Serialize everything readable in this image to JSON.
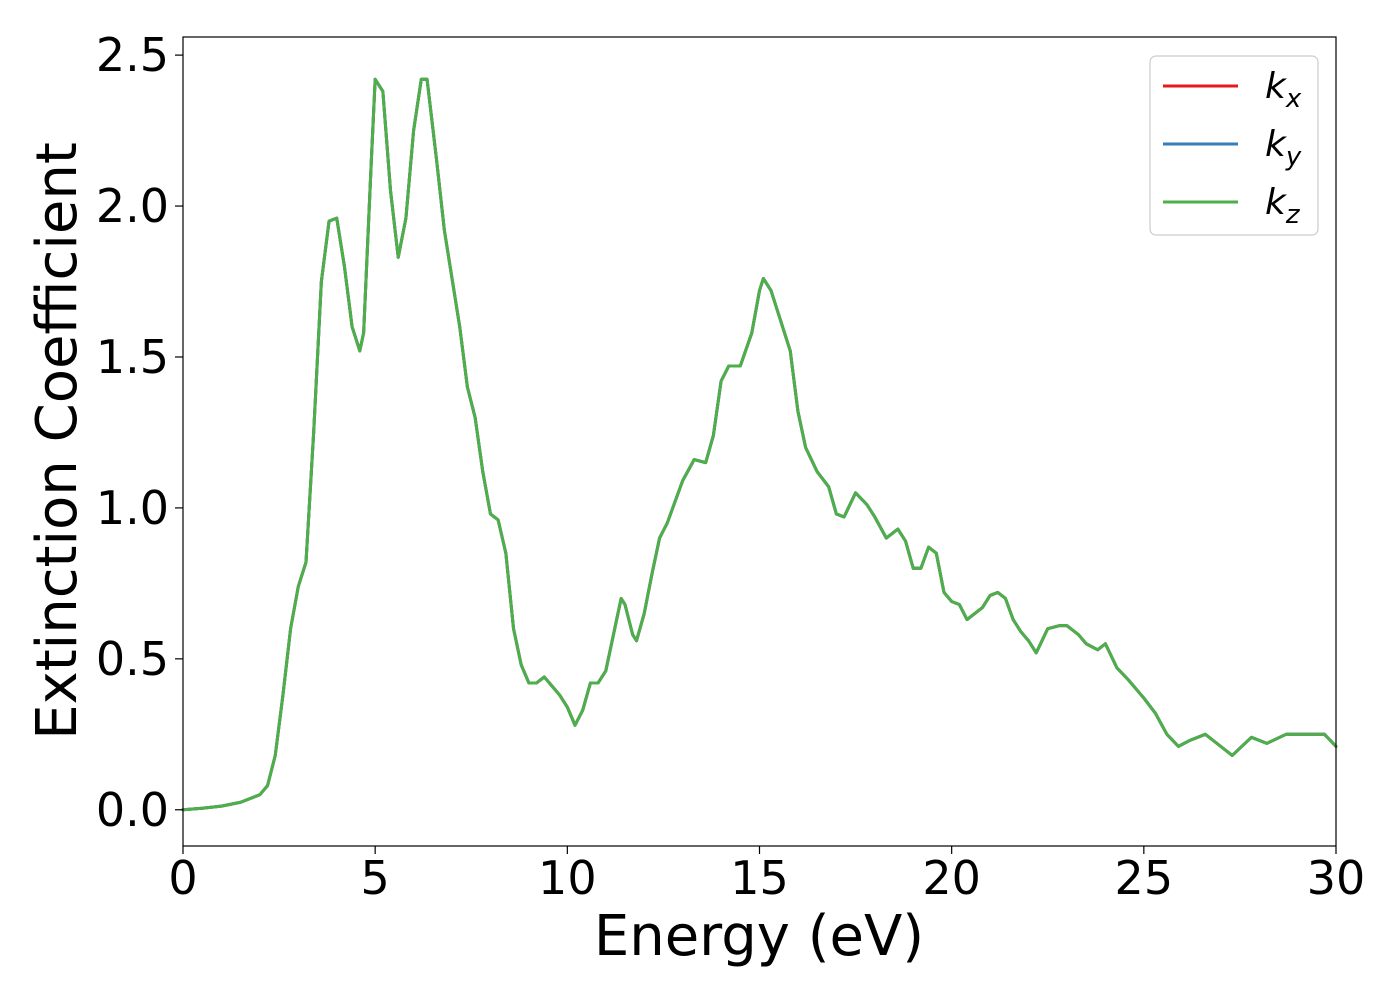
{
  "chart_data": {
    "type": "line",
    "title": "",
    "xlabel": "Energy (eV)",
    "ylabel": "Extinction Coefficient",
    "xlim": [
      0,
      30
    ],
    "ylim": [
      -0.12,
      2.56
    ],
    "xticks": [
      0,
      5,
      10,
      15,
      20,
      25,
      30
    ],
    "xtick_labels": [
      "0",
      "5",
      "10",
      "15",
      "20",
      "25",
      "30"
    ],
    "yticks": [
      0.0,
      0.5,
      1.0,
      1.5,
      2.0,
      2.5
    ],
    "ytick_labels": [
      "0.0",
      "0.5",
      "1.0",
      "1.5",
      "2.0",
      "2.5"
    ],
    "grid": false,
    "legend_position": "top-right",
    "x": [
      0,
      0.5,
      1.0,
      1.5,
      2.0,
      2.2,
      2.4,
      2.6,
      2.8,
      3.0,
      3.2,
      3.4,
      3.6,
      3.8,
      4.0,
      4.2,
      4.4,
      4.6,
      4.7,
      4.9,
      5.0,
      5.2,
      5.4,
      5.6,
      5.8,
      6.0,
      6.2,
      6.35,
      6.6,
      6.8,
      7.0,
      7.2,
      7.4,
      7.6,
      7.8,
      8.0,
      8.2,
      8.4,
      8.6,
      8.8,
      9.0,
      9.2,
      9.4,
      9.6,
      9.8,
      10.0,
      10.2,
      10.4,
      10.6,
      10.8,
      11.0,
      11.2,
      11.4,
      11.5,
      11.7,
      11.8,
      12.0,
      12.2,
      12.4,
      12.6,
      12.8,
      13.0,
      13.3,
      13.6,
      13.8,
      14.0,
      14.2,
      14.5,
      14.8,
      15.0,
      15.1,
      15.3,
      15.5,
      15.8,
      16.0,
      16.2,
      16.5,
      16.8,
      17.0,
      17.2,
      17.5,
      17.8,
      18.0,
      18.3,
      18.6,
      18.8,
      19.0,
      19.2,
      19.4,
      19.6,
      19.8,
      20.0,
      20.2,
      20.4,
      20.6,
      20.8,
      21.0,
      21.2,
      21.4,
      21.6,
      21.8,
      22.0,
      22.2,
      22.5,
      22.8,
      23.0,
      23.3,
      23.5,
      23.8,
      24.0,
      24.3,
      24.6,
      25.0,
      25.3,
      25.6,
      25.9,
      26.2,
      26.6,
      27.0,
      27.3,
      27.8,
      28.2,
      28.7,
      29.2,
      29.7,
      30.0
    ],
    "series": [
      {
        "name": "k_x",
        "label_base": "k",
        "label_sub": "x",
        "color": "#e41a1c",
        "y": [
          0.0,
          0.005,
          0.012,
          0.025,
          0.05,
          0.08,
          0.18,
          0.38,
          0.6,
          0.74,
          0.82,
          1.25,
          1.75,
          1.95,
          1.96,
          1.8,
          1.6,
          1.52,
          1.58,
          2.15,
          2.42,
          2.38,
          2.05,
          1.83,
          1.96,
          2.25,
          2.42,
          2.42,
          2.15,
          1.92,
          1.76,
          1.6,
          1.4,
          1.3,
          1.12,
          0.98,
          0.96,
          0.85,
          0.6,
          0.48,
          0.42,
          0.42,
          0.44,
          0.41,
          0.38,
          0.34,
          0.28,
          0.33,
          0.42,
          0.42,
          0.46,
          0.58,
          0.7,
          0.68,
          0.58,
          0.56,
          0.65,
          0.78,
          0.9,
          0.95,
          1.02,
          1.09,
          1.16,
          1.15,
          1.24,
          1.42,
          1.47,
          1.47,
          1.58,
          1.72,
          1.76,
          1.72,
          1.64,
          1.52,
          1.32,
          1.2,
          1.12,
          1.07,
          0.98,
          0.97,
          1.05,
          1.01,
          0.97,
          0.9,
          0.93,
          0.89,
          0.8,
          0.8,
          0.87,
          0.85,
          0.72,
          0.69,
          0.68,
          0.63,
          0.65,
          0.67,
          0.71,
          0.72,
          0.7,
          0.63,
          0.59,
          0.56,
          0.52,
          0.6,
          0.61,
          0.61,
          0.58,
          0.55,
          0.53,
          0.55,
          0.47,
          0.43,
          0.37,
          0.32,
          0.25,
          0.21,
          0.23,
          0.25,
          0.21,
          0.18,
          0.24,
          0.22,
          0.25,
          0.25,
          0.25,
          0.21
        ]
      },
      {
        "name": "k_y",
        "label_base": "k",
        "label_sub": "y",
        "color": "#377eb8",
        "y": [
          0.0,
          0.005,
          0.012,
          0.025,
          0.05,
          0.08,
          0.18,
          0.38,
          0.6,
          0.74,
          0.82,
          1.25,
          1.75,
          1.95,
          1.96,
          1.8,
          1.6,
          1.52,
          1.58,
          2.15,
          2.42,
          2.38,
          2.05,
          1.83,
          1.96,
          2.25,
          2.42,
          2.42,
          2.15,
          1.92,
          1.76,
          1.6,
          1.4,
          1.3,
          1.12,
          0.98,
          0.96,
          0.85,
          0.6,
          0.48,
          0.42,
          0.42,
          0.44,
          0.41,
          0.38,
          0.34,
          0.28,
          0.33,
          0.42,
          0.42,
          0.46,
          0.58,
          0.7,
          0.68,
          0.58,
          0.56,
          0.65,
          0.78,
          0.9,
          0.95,
          1.02,
          1.09,
          1.16,
          1.15,
          1.24,
          1.42,
          1.47,
          1.47,
          1.58,
          1.72,
          1.76,
          1.72,
          1.64,
          1.52,
          1.32,
          1.2,
          1.12,
          1.07,
          0.98,
          0.97,
          1.05,
          1.01,
          0.97,
          0.9,
          0.93,
          0.89,
          0.8,
          0.8,
          0.87,
          0.85,
          0.72,
          0.69,
          0.68,
          0.63,
          0.65,
          0.67,
          0.71,
          0.72,
          0.7,
          0.63,
          0.59,
          0.56,
          0.52,
          0.6,
          0.61,
          0.61,
          0.58,
          0.55,
          0.53,
          0.55,
          0.47,
          0.43,
          0.37,
          0.32,
          0.25,
          0.21,
          0.23,
          0.25,
          0.21,
          0.18,
          0.24,
          0.22,
          0.25,
          0.25,
          0.25,
          0.21
        ]
      },
      {
        "name": "k_z",
        "label_base": "k",
        "label_sub": "z",
        "color": "#4daf4a",
        "y": [
          0.0,
          0.005,
          0.012,
          0.025,
          0.05,
          0.08,
          0.18,
          0.38,
          0.6,
          0.74,
          0.82,
          1.25,
          1.75,
          1.95,
          1.96,
          1.8,
          1.6,
          1.52,
          1.58,
          2.15,
          2.42,
          2.38,
          2.05,
          1.83,
          1.96,
          2.25,
          2.42,
          2.42,
          2.15,
          1.92,
          1.76,
          1.6,
          1.4,
          1.3,
          1.12,
          0.98,
          0.96,
          0.85,
          0.6,
          0.48,
          0.42,
          0.42,
          0.44,
          0.41,
          0.38,
          0.34,
          0.28,
          0.33,
          0.42,
          0.42,
          0.46,
          0.58,
          0.7,
          0.68,
          0.58,
          0.56,
          0.65,
          0.78,
          0.9,
          0.95,
          1.02,
          1.09,
          1.16,
          1.15,
          1.24,
          1.42,
          1.47,
          1.47,
          1.58,
          1.72,
          1.76,
          1.72,
          1.64,
          1.52,
          1.32,
          1.2,
          1.12,
          1.07,
          0.98,
          0.97,
          1.05,
          1.01,
          0.97,
          0.9,
          0.93,
          0.89,
          0.8,
          0.8,
          0.87,
          0.85,
          0.72,
          0.69,
          0.68,
          0.63,
          0.65,
          0.67,
          0.71,
          0.72,
          0.7,
          0.63,
          0.59,
          0.56,
          0.52,
          0.6,
          0.61,
          0.61,
          0.58,
          0.55,
          0.53,
          0.55,
          0.47,
          0.43,
          0.37,
          0.32,
          0.25,
          0.21,
          0.23,
          0.25,
          0.21,
          0.18,
          0.24,
          0.22,
          0.25,
          0.25,
          0.25,
          0.21
        ]
      }
    ]
  }
}
